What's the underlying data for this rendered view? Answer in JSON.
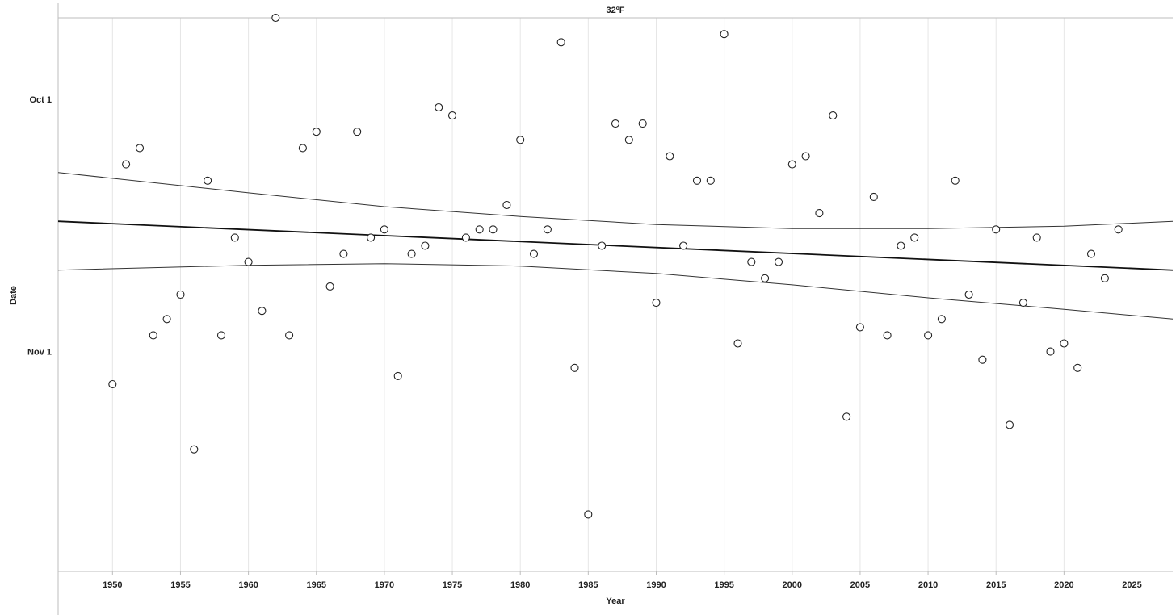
{
  "chart_data": {
    "type": "scatter",
    "title": "32ºF",
    "xlabel": "Year",
    "ylabel": "Date",
    "xlim": [
      1946,
      2028
    ],
    "ylim_days_text": "y values are dates (month-day), plotted with later dates lower",
    "ylim": [
      "Sep 21",
      "Nov 28"
    ],
    "x_ticks": [
      1950,
      1955,
      1960,
      1965,
      1970,
      1975,
      1980,
      1985,
      1990,
      1995,
      2000,
      2005,
      2010,
      2015,
      2020,
      2025
    ],
    "y_ticks": [
      {
        "date": "Oct 1",
        "label": "Oct 1"
      },
      {
        "date": "Nov 1",
        "label": "Nov 1"
      }
    ],
    "grid": true,
    "points": [
      {
        "x": 1950,
        "y": "Nov 5"
      },
      {
        "x": 1951,
        "y": "Oct 9"
      },
      {
        "x": 1952,
        "y": "Oct 7"
      },
      {
        "x": 1953,
        "y": "Oct 30"
      },
      {
        "x": 1954,
        "y": "Oct 28"
      },
      {
        "x": 1955,
        "y": "Oct 25"
      },
      {
        "x": 1956,
        "y": "Nov 13"
      },
      {
        "x": 1957,
        "y": "Oct 11"
      },
      {
        "x": 1958,
        "y": "Oct 30"
      },
      {
        "x": 1959,
        "y": "Oct 18"
      },
      {
        "x": 1960,
        "y": "Oct 21"
      },
      {
        "x": 1961,
        "y": "Oct 27"
      },
      {
        "x": 1962,
        "y": "Sep 21"
      },
      {
        "x": 1963,
        "y": "Oct 30"
      },
      {
        "x": 1964,
        "y": "Oct 7"
      },
      {
        "x": 1965,
        "y": "Oct 5"
      },
      {
        "x": 1966,
        "y": "Oct 24"
      },
      {
        "x": 1967,
        "y": "Oct 20"
      },
      {
        "x": 1968,
        "y": "Oct 5"
      },
      {
        "x": 1969,
        "y": "Oct 18"
      },
      {
        "x": 1970,
        "y": "Oct 17"
      },
      {
        "x": 1971,
        "y": "Nov 4"
      },
      {
        "x": 1972,
        "y": "Oct 20"
      },
      {
        "x": 1973,
        "y": "Oct 19"
      },
      {
        "x": 1974,
        "y": "Oct 2"
      },
      {
        "x": 1975,
        "y": "Oct 3"
      },
      {
        "x": 1976,
        "y": "Oct 18"
      },
      {
        "x": 1977,
        "y": "Oct 17"
      },
      {
        "x": 1978,
        "y": "Oct 17"
      },
      {
        "x": 1979,
        "y": "Oct 14"
      },
      {
        "x": 1980,
        "y": "Oct 6"
      },
      {
        "x": 1981,
        "y": "Oct 20"
      },
      {
        "x": 1982,
        "y": "Oct 17"
      },
      {
        "x": 1983,
        "y": "Sep 24"
      },
      {
        "x": 1984,
        "y": "Nov 3"
      },
      {
        "x": 1985,
        "y": "Nov 21"
      },
      {
        "x": 1986,
        "y": "Oct 19"
      },
      {
        "x": 1987,
        "y": "Oct 4"
      },
      {
        "x": 1988,
        "y": "Oct 6"
      },
      {
        "x": 1989,
        "y": "Oct 4"
      },
      {
        "x": 1990,
        "y": "Oct 26"
      },
      {
        "x": 1991,
        "y": "Oct 8"
      },
      {
        "x": 1992,
        "y": "Oct 19"
      },
      {
        "x": 1993,
        "y": "Oct 11"
      },
      {
        "x": 1994,
        "y": "Oct 11"
      },
      {
        "x": 1995,
        "y": "Sep 23"
      },
      {
        "x": 1996,
        "y": "Oct 31"
      },
      {
        "x": 1997,
        "y": "Oct 21"
      },
      {
        "x": 1998,
        "y": "Oct 23"
      },
      {
        "x": 1999,
        "y": "Oct 21"
      },
      {
        "x": 2000,
        "y": "Oct 9"
      },
      {
        "x": 2001,
        "y": "Oct 8"
      },
      {
        "x": 2002,
        "y": "Oct 15"
      },
      {
        "x": 2003,
        "y": "Oct 3"
      },
      {
        "x": 2004,
        "y": "Nov 9"
      },
      {
        "x": 2005,
        "y": "Oct 29"
      },
      {
        "x": 2006,
        "y": "Oct 13"
      },
      {
        "x": 2007,
        "y": "Oct 30"
      },
      {
        "x": 2008,
        "y": "Oct 19"
      },
      {
        "x": 2009,
        "y": "Oct 18"
      },
      {
        "x": 2010,
        "y": "Oct 30"
      },
      {
        "x": 2011,
        "y": "Oct 28"
      },
      {
        "x": 2012,
        "y": "Oct 11"
      },
      {
        "x": 2013,
        "y": "Oct 25"
      },
      {
        "x": 2014,
        "y": "Nov 2"
      },
      {
        "x": 2015,
        "y": "Oct 17"
      },
      {
        "x": 2016,
        "y": "Nov 10"
      },
      {
        "x": 2017,
        "y": "Oct 26"
      },
      {
        "x": 2018,
        "y": "Oct 18"
      },
      {
        "x": 2019,
        "y": "Nov 1"
      },
      {
        "x": 2020,
        "y": "Oct 31"
      },
      {
        "x": 2021,
        "y": "Nov 3"
      },
      {
        "x": 2022,
        "y": "Oct 20"
      },
      {
        "x": 2023,
        "y": "Oct 23"
      },
      {
        "x": 2024,
        "y": "Oct 17"
      }
    ],
    "trend_line": {
      "x": [
        1946,
        2028
      ],
      "y": [
        "Oct 16",
        "Oct 22"
      ]
    },
    "confidence_band": {
      "x": [
        1946,
        1960,
        1970,
        1980,
        1990,
        2000,
        2010,
        2020,
        2028
      ],
      "upper": [
        "Oct 10",
        "Oct 12.5",
        "Oct 14.2",
        "Oct 15.4",
        "Oct 16.4",
        "Oct 16.9",
        "Oct 16.9",
        "Oct 16.6",
        "Oct 16"
      ],
      "lower": [
        "Oct 22",
        "Oct 21.4",
        "Oct 21.2",
        "Oct 21.5",
        "Oct 22.4",
        "Oct 23.8",
        "Oct 25.4",
        "Oct 26.8",
        "Oct 28"
      ]
    },
    "colors": {
      "points": "#222222",
      "trend": "#111111",
      "band": "#333333",
      "grid": "#e6e6e6",
      "axis": "#bdbdbd"
    }
  }
}
